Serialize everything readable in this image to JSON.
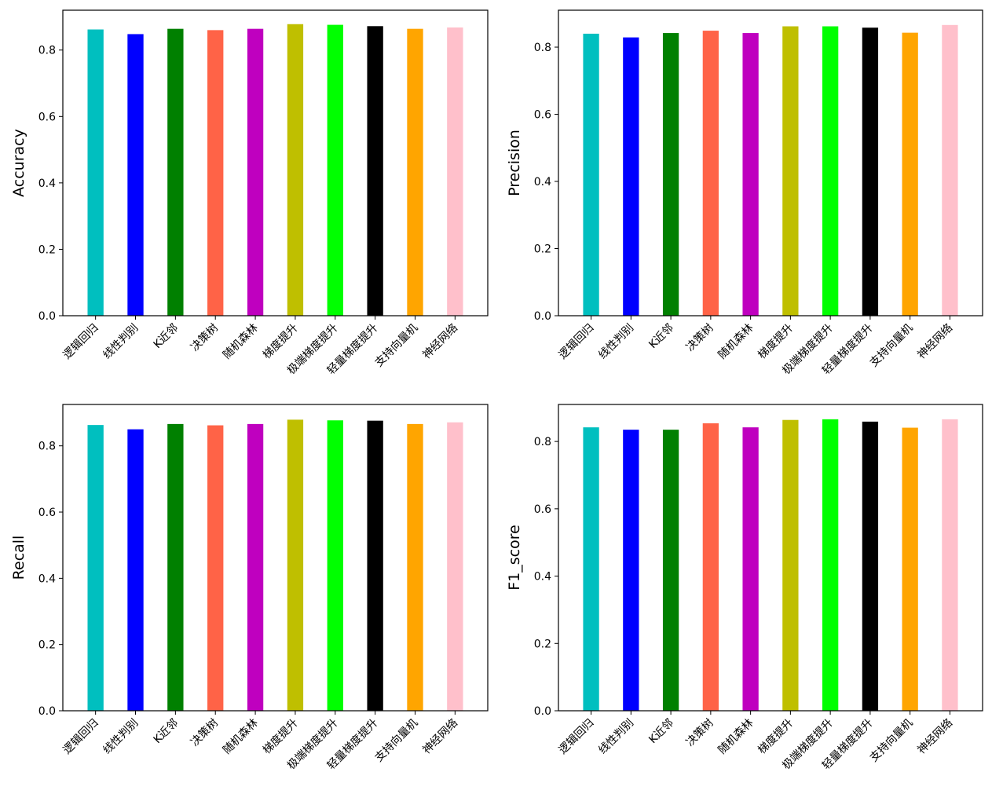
{
  "chart_data": [
    {
      "type": "bar",
      "ylabel": "Accuracy",
      "categories": [
        "逻辑回归",
        "线性判别",
        "K近邻",
        "决策树",
        "随机森林",
        "梯度提升",
        "极端梯度提升",
        "轻量梯度提升",
        "支持向量机",
        "神经网络"
      ],
      "values": [
        0.862,
        0.848,
        0.864,
        0.86,
        0.864,
        0.878,
        0.876,
        0.872,
        0.864,
        0.868
      ],
      "ylim": [
        0,
        0.92
      ],
      "yticks": [
        "0.0",
        "0.2",
        "0.4",
        "0.6",
        "0.8"
      ]
    },
    {
      "type": "bar",
      "ylabel": "Precision",
      "categories": [
        "逻辑回归",
        "线性判别",
        "K近邻",
        "决策树",
        "随机森林",
        "梯度提升",
        "极端梯度提升",
        "轻量梯度提升",
        "支持向量机",
        "神经网络"
      ],
      "values": [
        0.84,
        0.829,
        0.842,
        0.849,
        0.842,
        0.862,
        0.862,
        0.858,
        0.843,
        0.866
      ],
      "ylim": [
        0,
        0.91
      ],
      "yticks": [
        "0.0",
        "0.2",
        "0.4",
        "0.6",
        "0.8"
      ]
    },
    {
      "type": "bar",
      "ylabel": "Recall",
      "categories": [
        "逻辑回归",
        "线性判别",
        "K近邻",
        "决策树",
        "随机森林",
        "梯度提升",
        "极端梯度提升",
        "轻量梯度提升",
        "支持向量机",
        "神经网络"
      ],
      "values": [
        0.863,
        0.85,
        0.866,
        0.862,
        0.866,
        0.879,
        0.877,
        0.876,
        0.866,
        0.871
      ],
      "ylim": [
        0,
        0.925
      ],
      "yticks": [
        "0.0",
        "0.2",
        "0.4",
        "0.6",
        "0.8"
      ]
    },
    {
      "type": "bar",
      "ylabel": "F1_score",
      "categories": [
        "逻辑回归",
        "线性判别",
        "K近邻",
        "决策树",
        "随机森林",
        "梯度提升",
        "极端梯度提升",
        "轻量梯度提升",
        "支持向量机",
        "神经网络"
      ],
      "values": [
        0.842,
        0.835,
        0.835,
        0.854,
        0.842,
        0.864,
        0.866,
        0.859,
        0.841,
        0.866
      ],
      "ylim": [
        0,
        0.91
      ],
      "yticks": [
        "0.0",
        "0.2",
        "0.4",
        "0.6",
        "0.8"
      ]
    }
  ],
  "bar_colors": [
    "#00bfbf",
    "#0000ff",
    "#008000",
    "#ff6347",
    "#bf00bf",
    "#bfbf00",
    "#00ff00",
    "#000000",
    "#ffa500",
    "#ffc0cb"
  ],
  "grid": false,
  "legend": "none"
}
